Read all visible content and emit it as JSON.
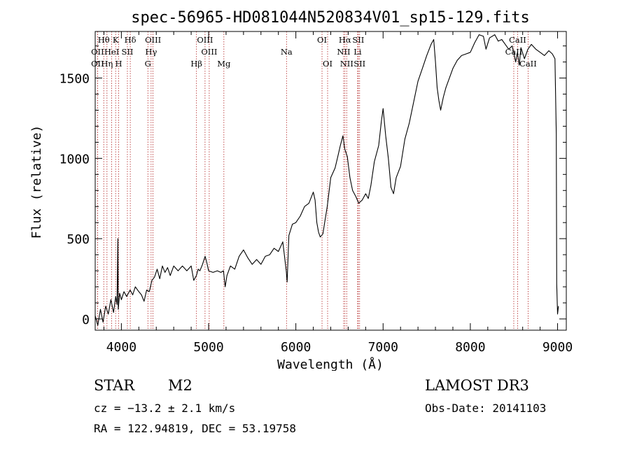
{
  "chart_data": {
    "type": "line",
    "title": "spec-56965-HD081044N520834V01_sp15-129.fits",
    "xlabel": "Wavelength (Å)",
    "ylabel": "Flux (relative)",
    "xlim": [
      3700,
      9100
    ],
    "ylim": [
      -70,
      1790
    ],
    "xticks": [
      4000,
      5000,
      6000,
      7000,
      8000,
      9000
    ],
    "yticks": [
      0,
      500,
      1000,
      1500
    ],
    "grid": false,
    "series": [
      {
        "name": "flux",
        "points": [
          [
            3700,
            20
          ],
          [
            3730,
            -40
          ],
          [
            3760,
            60
          ],
          [
            3790,
            -20
          ],
          [
            3820,
            80
          ],
          [
            3850,
            30
          ],
          [
            3880,
            120
          ],
          [
            3910,
            40
          ],
          [
            3935,
            140
          ],
          [
            3950,
            90
          ],
          [
            3960,
            500
          ],
          [
            3964,
            60
          ],
          [
            3980,
            160
          ],
          [
            4000,
            120
          ],
          [
            4030,
            170
          ],
          [
            4060,
            140
          ],
          [
            4100,
            180
          ],
          [
            4130,
            150
          ],
          [
            4160,
            200
          ],
          [
            4200,
            170
          ],
          [
            4230,
            150
          ],
          [
            4260,
            110
          ],
          [
            4290,
            180
          ],
          [
            4320,
            170
          ],
          [
            4350,
            240
          ],
          [
            4380,
            260
          ],
          [
            4410,
            310
          ],
          [
            4440,
            250
          ],
          [
            4470,
            330
          ],
          [
            4500,
            290
          ],
          [
            4530,
            320
          ],
          [
            4560,
            270
          ],
          [
            4600,
            330
          ],
          [
            4650,
            300
          ],
          [
            4700,
            330
          ],
          [
            4750,
            300
          ],
          [
            4800,
            330
          ],
          [
            4830,
            240
          ],
          [
            4860,
            270
          ],
          [
            4880,
            310
          ],
          [
            4900,
            300
          ],
          [
            4930,
            340
          ],
          [
            4960,
            390
          ],
          [
            4980,
            350
          ],
          [
            5000,
            300
          ],
          [
            5050,
            290
          ],
          [
            5100,
            300
          ],
          [
            5140,
            290
          ],
          [
            5170,
            300
          ],
          [
            5190,
            200
          ],
          [
            5210,
            270
          ],
          [
            5250,
            330
          ],
          [
            5300,
            310
          ],
          [
            5350,
            390
          ],
          [
            5400,
            430
          ],
          [
            5450,
            380
          ],
          [
            5500,
            340
          ],
          [
            5550,
            370
          ],
          [
            5600,
            340
          ],
          [
            5650,
            390
          ],
          [
            5700,
            400
          ],
          [
            5750,
            440
          ],
          [
            5800,
            420
          ],
          [
            5850,
            480
          ],
          [
            5890,
            300
          ],
          [
            5900,
            230
          ],
          [
            5920,
            520
          ],
          [
            5960,
            590
          ],
          [
            6000,
            600
          ],
          [
            6050,
            640
          ],
          [
            6100,
            700
          ],
          [
            6150,
            720
          ],
          [
            6200,
            790
          ],
          [
            6220,
            740
          ],
          [
            6240,
            600
          ],
          [
            6260,
            540
          ],
          [
            6280,
            510
          ],
          [
            6310,
            530
          ],
          [
            6330,
            600
          ],
          [
            6360,
            700
          ],
          [
            6400,
            880
          ],
          [
            6450,
            940
          ],
          [
            6480,
            1010
          ],
          [
            6510,
            1080
          ],
          [
            6540,
            1140
          ],
          [
            6560,
            1060
          ],
          [
            6590,
            1010
          ],
          [
            6620,
            880
          ],
          [
            6650,
            800
          ],
          [
            6690,
            760
          ],
          [
            6720,
            720
          ],
          [
            6760,
            740
          ],
          [
            6800,
            780
          ],
          [
            6830,
            750
          ],
          [
            6860,
            830
          ],
          [
            6900,
            980
          ],
          [
            6950,
            1080
          ],
          [
            6980,
            1230
          ],
          [
            7000,
            1310
          ],
          [
            7030,
            1140
          ],
          [
            7060,
            1000
          ],
          [
            7090,
            820
          ],
          [
            7120,
            780
          ],
          [
            7150,
            880
          ],
          [
            7200,
            950
          ],
          [
            7250,
            1120
          ],
          [
            7300,
            1220
          ],
          [
            7350,
            1350
          ],
          [
            7400,
            1480
          ],
          [
            7450,
            1560
          ],
          [
            7500,
            1640
          ],
          [
            7550,
            1710
          ],
          [
            7580,
            1740
          ],
          [
            7600,
            1600
          ],
          [
            7620,
            1440
          ],
          [
            7640,
            1360
          ],
          [
            7660,
            1300
          ],
          [
            7690,
            1380
          ],
          [
            7720,
            1440
          ],
          [
            7760,
            1500
          ],
          [
            7800,
            1560
          ],
          [
            7850,
            1610
          ],
          [
            7900,
            1640
          ],
          [
            7950,
            1650
          ],
          [
            8000,
            1660
          ],
          [
            8050,
            1720
          ],
          [
            8100,
            1770
          ],
          [
            8150,
            1760
          ],
          [
            8180,
            1680
          ],
          [
            8220,
            1750
          ],
          [
            8280,
            1770
          ],
          [
            8320,
            1730
          ],
          [
            8360,
            1740
          ],
          [
            8400,
            1710
          ],
          [
            8440,
            1680
          ],
          [
            8480,
            1700
          ],
          [
            8500,
            1650
          ],
          [
            8520,
            1600
          ],
          [
            8540,
            1660
          ],
          [
            8560,
            1580
          ],
          [
            8580,
            1690
          ],
          [
            8620,
            1620
          ],
          [
            8660,
            1680
          ],
          [
            8700,
            1710
          ],
          [
            8750,
            1680
          ],
          [
            8800,
            1660
          ],
          [
            8850,
            1640
          ],
          [
            8900,
            1670
          ],
          [
            8940,
            1650
          ],
          [
            8970,
            1620
          ],
          [
            8985,
            1150
          ],
          [
            8990,
            220
          ],
          [
            9000,
            30
          ],
          [
            9010,
            80
          ]
        ]
      }
    ],
    "lines": [
      {
        "label": "Hθ",
        "wave": 3798,
        "row": 1
      },
      {
        "label": "OII",
        "wave": 3727,
        "row": 2
      },
      {
        "label": "OII",
        "wave": 3727,
        "row": 3
      },
      {
        "label": "Hη",
        "wave": 3835,
        "row": 3
      },
      {
        "label": "HeI",
        "wave": 3889,
        "row": 2
      },
      {
        "label": "K",
        "wave": 3934,
        "row": 1
      },
      {
        "label": "H",
        "wave": 3969,
        "row": 3
      },
      {
        "label": "SII",
        "wave": 4069,
        "row": 2
      },
      {
        "label": "Hδ",
        "wave": 4102,
        "row": 1
      },
      {
        "label": "OIII",
        "wave": 4363,
        "row": 1
      },
      {
        "label": "Hγ",
        "wave": 4341,
        "row": 2
      },
      {
        "label": "G",
        "wave": 4304,
        "row": 3
      },
      {
        "label": "Hβ",
        "wave": 4861,
        "row": 3
      },
      {
        "label": "OIII",
        "wave": 4959,
        "row": 1
      },
      {
        "label": "OIII",
        "wave": 5007,
        "row": 2
      },
      {
        "label": "Mg",
        "wave": 5175,
        "row": 3
      },
      {
        "label": "Na",
        "wave": 5893,
        "row": 2
      },
      {
        "label": "OI",
        "wave": 6300,
        "row": 1
      },
      {
        "label": "OI",
        "wave": 6364,
        "row": 3
      },
      {
        "label": "Hα",
        "wave": 6563,
        "row": 1
      },
      {
        "label": "NII",
        "wave": 6548,
        "row": 2
      },
      {
        "label": "NII",
        "wave": 6583,
        "row": 3
      },
      {
        "label": "SII",
        "wave": 6716,
        "row": 1
      },
      {
        "label": "Li",
        "wave": 6708,
        "row": 2
      },
      {
        "label": "SII",
        "wave": 6731,
        "row": 3
      },
      {
        "label": "CaII",
        "wave": 8542,
        "row": 1
      },
      {
        "label": "CaII",
        "wave": 8498,
        "row": 2
      },
      {
        "label": "CaII",
        "wave": 8662,
        "row": 3
      }
    ]
  },
  "info": {
    "object_class": "STAR",
    "subclass": "M2",
    "survey": "LAMOST DR3",
    "cz": "cz = −13.2 ± 2.1 km/s",
    "obs_date": "Obs-Date: 20141103",
    "coords": "RA = 122.94819, DEC =  53.19758"
  },
  "colors": {
    "line_marker": "#b22222",
    "spectrum": "#000000"
  }
}
